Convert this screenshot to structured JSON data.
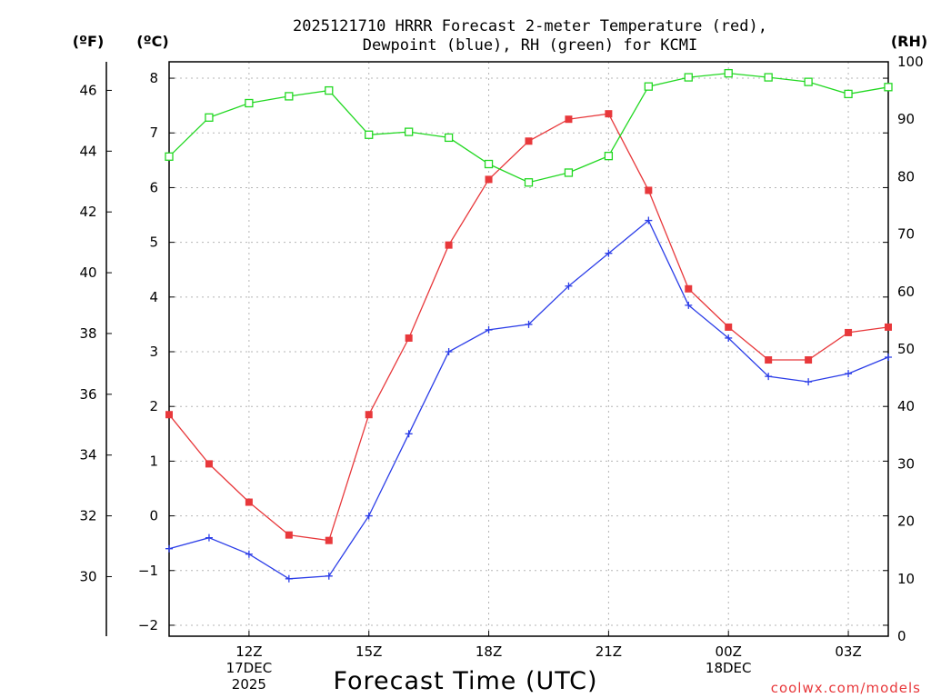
{
  "chart_data": {
    "type": "line",
    "title_lines": [
      "2025121710 HRRR Forecast 2-meter Temperature (red),",
      "Dewpoint (blue), RH (green) for KCMI"
    ],
    "xlabel": "Forecast Time (UTC)",
    "credit": "coolwx.com/models",
    "units": {
      "fahrenheit": "(ºF)",
      "celsius": "(ºC)",
      "rh": "(RH)"
    },
    "x_hours": [
      10,
      11,
      12,
      13,
      14,
      15,
      16,
      17,
      18,
      19,
      20,
      21,
      22,
      23,
      24,
      25,
      26,
      27,
      28
    ],
    "xlim": [
      10,
      28
    ],
    "x_ticks": [
      {
        "hour": 12,
        "lines": [
          "12Z",
          "17DEC",
          "2025"
        ]
      },
      {
        "hour": 15,
        "lines": [
          "15Z"
        ]
      },
      {
        "hour": 18,
        "lines": [
          "18Z"
        ]
      },
      {
        "hour": 21,
        "lines": [
          "21Z"
        ]
      },
      {
        "hour": 24,
        "lines": [
          "00Z",
          "18DEC"
        ]
      },
      {
        "hour": 27,
        "lines": [
          "03Z"
        ]
      }
    ],
    "ylim_celsius": [
      -2.2,
      8.3
    ],
    "y_ticks_celsius": [
      "8",
      "7",
      "6",
      "5",
      "4",
      "3",
      "2",
      "1",
      "0",
      "−1",
      "−2"
    ],
    "y_ticks_fahrenheit": [
      "46",
      "44",
      "42",
      "40",
      "38",
      "36",
      "34",
      "32",
      "30"
    ],
    "ylim_rh": [
      0,
      100
    ],
    "y_ticks_rh": [
      "100",
      "90",
      "80",
      "70",
      "60",
      "50",
      "40",
      "30",
      "20",
      "10",
      "0"
    ],
    "series": [
      {
        "name": "Temperature",
        "axis": "celsius",
        "color": "#e8383b",
        "marker": "filled-square",
        "values": [
          1.85,
          0.95,
          0.25,
          -0.35,
          -0.45,
          1.85,
          3.25,
          4.95,
          6.15,
          6.85,
          7.25,
          7.35,
          5.95,
          4.15,
          3.45,
          2.85,
          2.85,
          3.35,
          3.45
        ]
      },
      {
        "name": "Dewpoint",
        "axis": "celsius",
        "color": "#2b3de8",
        "marker": "plus",
        "values": [
          -0.6,
          -0.4,
          -0.7,
          -1.15,
          -1.1,
          0.0,
          1.5,
          3.0,
          3.4,
          3.5,
          4.2,
          4.8,
          5.4,
          3.85,
          3.25,
          2.55,
          2.45,
          2.6,
          2.9
        ]
      },
      {
        "name": "RH",
        "axis": "rh",
        "color": "#22d822",
        "marker": "open-square",
        "values": [
          83.5,
          90.3,
          92.8,
          94.0,
          95.0,
          87.3,
          87.8,
          86.8,
          82.2,
          79.0,
          80.7,
          83.6,
          95.7,
          97.3,
          98.0,
          97.3,
          96.5,
          94.4,
          95.6
        ]
      }
    ]
  }
}
